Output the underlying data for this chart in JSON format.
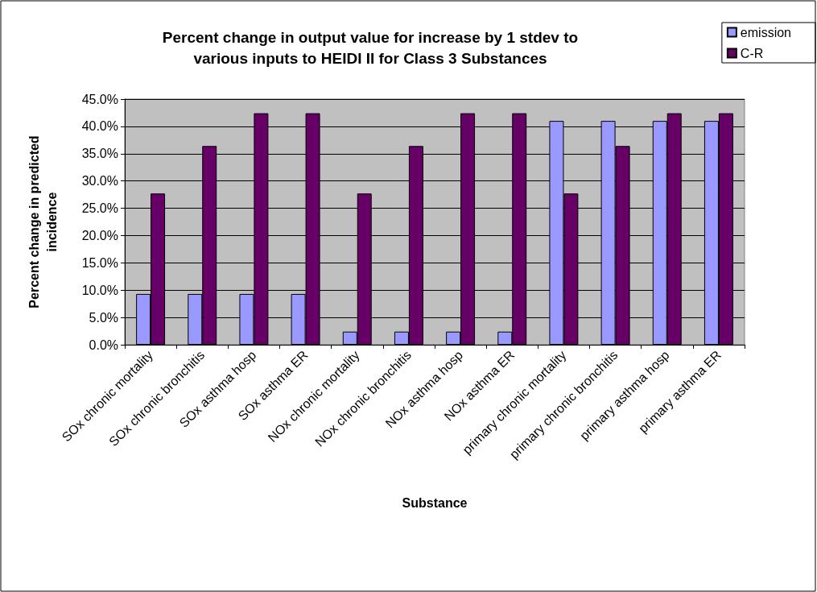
{
  "chart_data": {
    "type": "bar",
    "title": "Percent change in output value for increase by 1 stdev to\nvarious inputs to HEIDI II for Class 3 Substances",
    "xlabel": "Substance",
    "ylabel": "Percent change in predicted\nincidence",
    "categories": [
      "SOx chronic mortality",
      "SOx chronic bronchitis",
      "SOx asthma hosp",
      "SOx asthma ER",
      "NOx chronic mortality",
      "NOx chronic bronchitis",
      "NOx asthma hosp",
      "NOx asthma ER",
      "primary chronic mortality",
      "primary chronic bronchitis",
      "primary asthma hosp",
      "primary asthma ER"
    ],
    "series": [
      {
        "name": "emission",
        "color": "#9999ff",
        "values": [
          9.3,
          9.3,
          9.3,
          9.3,
          2.4,
          2.4,
          2.4,
          2.4,
          41.0,
          41.0,
          41.0,
          41.0
        ]
      },
      {
        "name": "C-R",
        "color": "#660066",
        "values": [
          27.7,
          36.4,
          42.4,
          42.4,
          27.7,
          36.4,
          42.4,
          42.4,
          27.7,
          36.4,
          42.4,
          42.4
        ]
      }
    ],
    "ylim": [
      0,
      45
    ],
    "yticks": [
      {
        "value": 0,
        "label": "0.0%"
      },
      {
        "value": 5,
        "label": "5.0%"
      },
      {
        "value": 10,
        "label": "10.0%"
      },
      {
        "value": 15,
        "label": "15.0%"
      },
      {
        "value": 20,
        "label": "20.0%"
      },
      {
        "value": 25,
        "label": "25.0%"
      },
      {
        "value": 30,
        "label": "30.0%"
      },
      {
        "value": 35,
        "label": "35.0%"
      },
      {
        "value": 40,
        "label": "40.0%"
      },
      {
        "value": 45,
        "label": "45.0%"
      }
    ],
    "grid": "y",
    "legend": "top right"
  }
}
